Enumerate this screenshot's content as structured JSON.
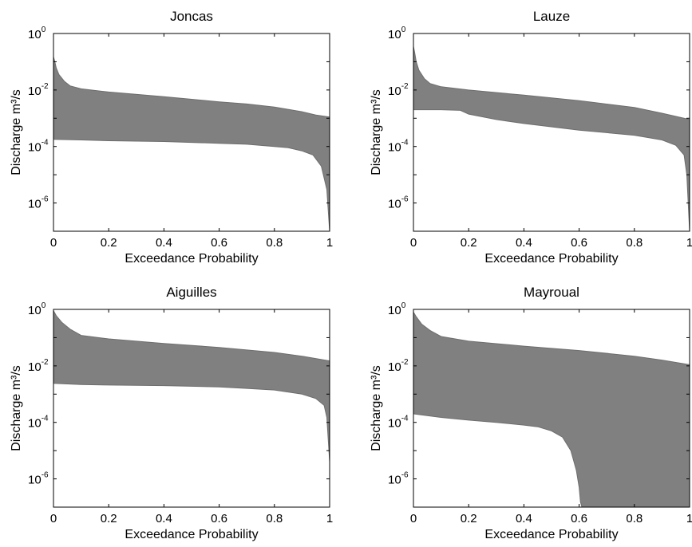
{
  "chart_data": [
    {
      "type": "area",
      "title": "Joncas",
      "xlabel": "Exceedance Probability",
      "ylabel": "Discharge m³/s",
      "xlim": [
        0,
        1
      ],
      "ylim": [
        1e-07,
        1
      ],
      "yscale": "log",
      "grid": false,
      "xticks": [
        "0",
        "0.2",
        "0.4",
        "0.6",
        "0.8",
        "1"
      ],
      "yticks": [
        "10^0",
        "10^-2",
        "10^-4",
        "10^-6"
      ],
      "band_color": "#808080",
      "series": [
        {
          "x": [
            0,
            0.005,
            0.01,
            0.02,
            0.04,
            0.06,
            0.1,
            0.2,
            0.4,
            0.6,
            0.7,
            0.8,
            0.9,
            0.95,
            1.0
          ],
          "values": [
            0.15,
            0.1,
            0.06,
            0.035,
            0.02,
            0.014,
            0.011,
            0.0085,
            0.0058,
            0.0038,
            0.0032,
            0.0025,
            0.0017,
            0.0013,
            0.0011
          ]
        },
        {
          "x": [
            0,
            0.1,
            0.2,
            0.4,
            0.6,
            0.7,
            0.8,
            0.85,
            0.9,
            0.94,
            0.97,
            0.99,
            1.0
          ],
          "values": [
            0.00018,
            0.00017,
            0.00016,
            0.00015,
            0.00013,
            0.00012,
            0.0001,
            9e-05,
            7e-05,
            5e-05,
            2e-05,
            3e-06,
            1e-07
          ]
        }
      ]
    },
    {
      "type": "area",
      "title": "Lauze",
      "xlabel": "Exceedance Probability",
      "ylabel": "Discharge m³/s",
      "xlim": [
        0,
        1
      ],
      "ylim": [
        1e-07,
        1
      ],
      "yscale": "log",
      "grid": false,
      "xticks": [
        "0",
        "0.2",
        "0.4",
        "0.6",
        "0.8",
        "1"
      ],
      "yticks": [
        "10^0",
        "10^-2",
        "10^-4",
        "10^-6"
      ],
      "band_color": "#808080",
      "series": [
        {
          "x": [
            0,
            0.005,
            0.01,
            0.02,
            0.04,
            0.06,
            0.1,
            0.2,
            0.4,
            0.6,
            0.8,
            0.9,
            1.0
          ],
          "values": [
            0.35,
            0.2,
            0.1,
            0.05,
            0.025,
            0.017,
            0.013,
            0.01,
            0.0066,
            0.0042,
            0.0024,
            0.0015,
            0.0009
          ]
        },
        {
          "x": [
            0,
            0.1,
            0.17,
            0.2,
            0.3,
            0.4,
            0.6,
            0.8,
            0.9,
            0.95,
            0.98,
            0.99,
            1.0
          ],
          "values": [
            0.002,
            0.002,
            0.0019,
            0.0014,
            0.0009,
            0.00065,
            0.00038,
            0.00025,
            0.00017,
            0.00011,
            5e-05,
            1e-05,
            1e-07
          ]
        }
      ]
    },
    {
      "type": "area",
      "title": "Aiguilles",
      "xlabel": "Exceedance Probability",
      "ylabel": "Discharge m³/s",
      "xlim": [
        0,
        1
      ],
      "ylim": [
        1e-07,
        1
      ],
      "yscale": "log",
      "grid": false,
      "xticks": [
        "0",
        "0.2",
        "0.4",
        "0.6",
        "0.8",
        "1"
      ],
      "yticks": [
        "10^0",
        "10^-2",
        "10^-4",
        "10^-6"
      ],
      "band_color": "#808080",
      "series": [
        {
          "x": [
            0,
            0.01,
            0.03,
            0.06,
            0.1,
            0.2,
            0.4,
            0.6,
            0.8,
            0.9,
            1.0
          ],
          "values": [
            0.9,
            0.6,
            0.35,
            0.2,
            0.12,
            0.09,
            0.062,
            0.045,
            0.03,
            0.022,
            0.015
          ]
        },
        {
          "x": [
            0,
            0.1,
            0.2,
            0.4,
            0.6,
            0.7,
            0.8,
            0.9,
            0.95,
            0.98,
            0.99,
            1.0
          ],
          "values": [
            0.0024,
            0.0022,
            0.0021,
            0.002,
            0.0018,
            0.0016,
            0.0014,
            0.001,
            0.0007,
            0.0004,
            0.00015,
            4e-06
          ]
        }
      ]
    },
    {
      "type": "area",
      "title": "Mayroual",
      "xlabel": "Exceedance Probability",
      "ylabel": "Discharge m³/s",
      "xlim": [
        0,
        1
      ],
      "ylim": [
        1e-07,
        1
      ],
      "yscale": "log",
      "grid": false,
      "xticks": [
        "0",
        "0.2",
        "0.4",
        "0.6",
        "0.8",
        "1"
      ],
      "yticks": [
        "10^0",
        "10^-2",
        "10^-4",
        "10^-6"
      ],
      "band_color": "#808080",
      "series": [
        {
          "x": [
            0,
            0.01,
            0.03,
            0.06,
            0.1,
            0.2,
            0.4,
            0.6,
            0.8,
            0.9,
            1.0
          ],
          "values": [
            0.8,
            0.55,
            0.3,
            0.18,
            0.11,
            0.075,
            0.05,
            0.035,
            0.022,
            0.016,
            0.011
          ]
        },
        {
          "x": [
            0,
            0.1,
            0.2,
            0.3,
            0.4,
            0.45,
            0.5,
            0.54,
            0.57,
            0.59,
            0.6,
            0.605,
            0.61,
            1.0
          ],
          "values": [
            0.0002,
            0.00015,
            0.00012,
            0.0001,
            8e-05,
            7e-05,
            5e-05,
            3e-05,
            1e-05,
            2e-06,
            5e-07,
            1.5e-07,
            1e-07,
            1e-07
          ]
        }
      ]
    }
  ]
}
